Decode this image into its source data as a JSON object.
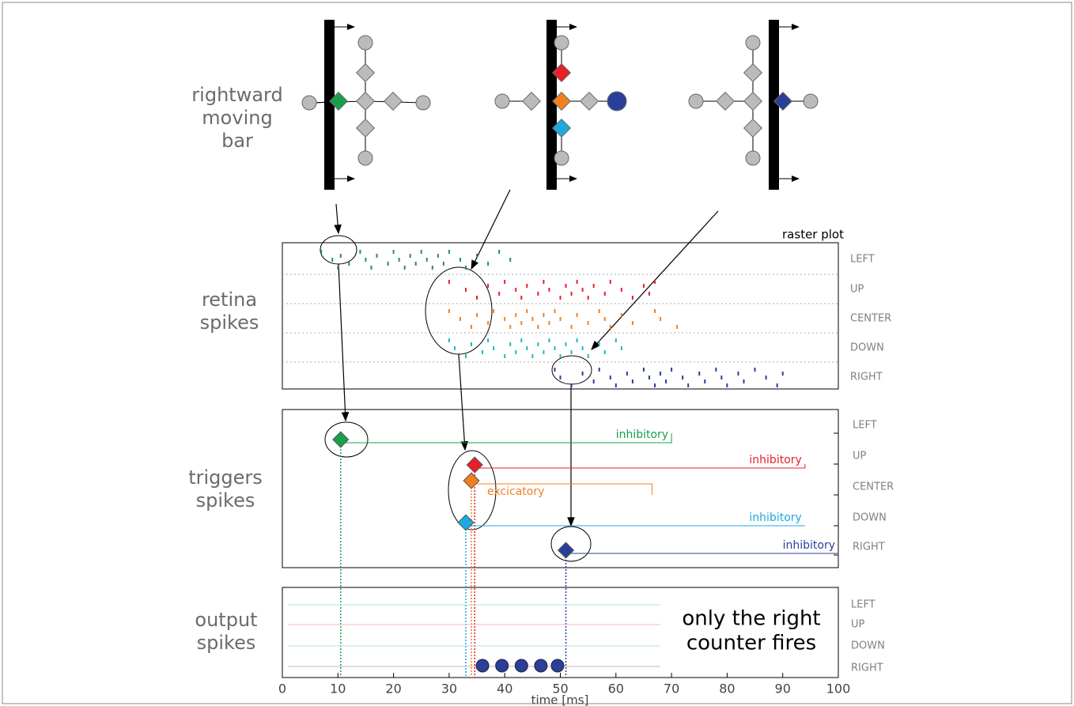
{
  "stimulus_label": [
    "rightward",
    "moving",
    "bar"
  ],
  "raster": {
    "panel_label": [
      "retina",
      "spikes"
    ],
    "title": "raster plot",
    "channels": [
      "LEFT",
      "UP",
      "CENTER",
      "DOWN",
      "RIGHT"
    ],
    "colors": [
      "#2e8b57",
      "#e8202a",
      "#f28020",
      "#20b8b8",
      "#2a3f9a"
    ],
    "spikes": [
      [
        7,
        9,
        10,
        10.5,
        12,
        14,
        15,
        16,
        17,
        19,
        20,
        21,
        22,
        23,
        24,
        25,
        26,
        27,
        28,
        29,
        30,
        32,
        33,
        35,
        37,
        39,
        41
      ],
      [
        30,
        33,
        35,
        37,
        39,
        40,
        42,
        43,
        44,
        46,
        47,
        48,
        50,
        51,
        52,
        53,
        54,
        55,
        56,
        58,
        59,
        61,
        63,
        65,
        66,
        67
      ],
      [
        30,
        32,
        34,
        35,
        37,
        38,
        40,
        41,
        42,
        43,
        44,
        45,
        46,
        47,
        48,
        49,
        50,
        52,
        53,
        55,
        57,
        58,
        59,
        61,
        63,
        67,
        68,
        71
      ],
      [
        30,
        31,
        33,
        34,
        36,
        37,
        38,
        40,
        41,
        42,
        43,
        44,
        45,
        46,
        47,
        48,
        49,
        50,
        51,
        52,
        53,
        54,
        55,
        57,
        58,
        60,
        61
      ],
      [
        49,
        50,
        52,
        54,
        56,
        57,
        59,
        60,
        62,
        63,
        65,
        66,
        67,
        68,
        69,
        70,
        72,
        73,
        75,
        76,
        78,
        79,
        80,
        82,
        83,
        85,
        87,
        89,
        90
      ]
    ]
  },
  "triggers": {
    "panel_label": [
      "triggers",
      "spikes"
    ],
    "channels": [
      "LEFT",
      "UP",
      "CENTER",
      "DOWN",
      "RIGHT"
    ],
    "colors": [
      "#1aa04a",
      "#e8202a",
      "#f28020",
      "#20a8e0",
      "#2a3f9a"
    ],
    "times": [
      10.5,
      34.6,
      34,
      33,
      51
    ],
    "line_end": [
      70,
      94,
      66.5,
      94,
      100
    ],
    "connection_labels": [
      "inhibitory",
      "inhibitory",
      "excicatory",
      "inhibitory",
      "inhibitory"
    ]
  },
  "output": {
    "panel_label": [
      "output",
      "spikes"
    ],
    "channels": [
      "LEFT",
      "UP",
      "DOWN",
      "RIGHT"
    ],
    "spikes": [
      36,
      39.5,
      43,
      46.5,
      49.5
    ],
    "annotation": [
      "only the right",
      "counter fires"
    ]
  },
  "x_axis": {
    "label": "time [ms]",
    "lim": [
      0,
      100
    ],
    "ticks": [
      0,
      10,
      20,
      30,
      40,
      50,
      60,
      70,
      80,
      90,
      100
    ]
  }
}
